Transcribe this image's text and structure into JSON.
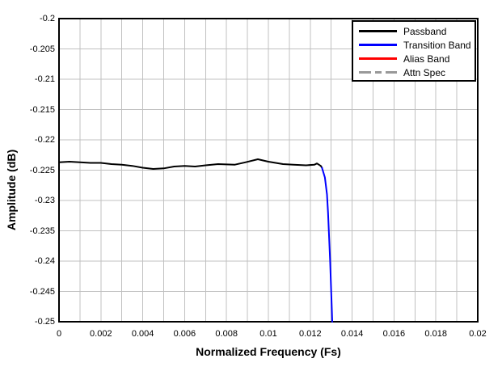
{
  "chart_data": {
    "type": "line",
    "title": "",
    "xlabel": "Normalized Frequency (Fs)",
    "ylabel": "Amplitude (dB)",
    "xlim": [
      0,
      0.02
    ],
    "ylim": [
      -0.25,
      -0.2
    ],
    "grid": true,
    "grid_color": "#c0c0c0",
    "x_minor_step": 0.001,
    "legend_position": "top-right",
    "x_ticks": [
      {
        "v": 0,
        "label": "0"
      },
      {
        "v": 0.002,
        "label": "0.002"
      },
      {
        "v": 0.004,
        "label": "0.004"
      },
      {
        "v": 0.006,
        "label": "0.006"
      },
      {
        "v": 0.008,
        "label": "0.008"
      },
      {
        "v": 0.01,
        "label": "0.01"
      },
      {
        "v": 0.012,
        "label": "0.012"
      },
      {
        "v": 0.014,
        "label": "0.014"
      },
      {
        "v": 0.016,
        "label": "0.016"
      },
      {
        "v": 0.018,
        "label": "0.018"
      },
      {
        "v": 0.02,
        "label": "0.02"
      }
    ],
    "y_ticks": [
      {
        "v": -0.2,
        "label": "-0.2"
      },
      {
        "v": -0.205,
        "label": "-0.205"
      },
      {
        "v": -0.21,
        "label": "-0.21"
      },
      {
        "v": -0.215,
        "label": "-0.215"
      },
      {
        "v": -0.22,
        "label": "-0.22"
      },
      {
        "v": -0.225,
        "label": "-0.225"
      },
      {
        "v": -0.23,
        "label": "-0.23"
      },
      {
        "v": -0.235,
        "label": "-0.235"
      },
      {
        "v": -0.24,
        "label": "-0.24"
      },
      {
        "v": -0.245,
        "label": "-0.245"
      },
      {
        "v": -0.25,
        "label": "-0.25"
      }
    ],
    "series": [
      {
        "name": "Passband",
        "color": "#000000",
        "dash": "solid",
        "points": [
          [
            0.0,
            -0.2237
          ],
          [
            0.0005,
            -0.2236
          ],
          [
            0.001,
            -0.2237
          ],
          [
            0.0015,
            -0.2238
          ],
          [
            0.002,
            -0.2238
          ],
          [
            0.0025,
            -0.224
          ],
          [
            0.003,
            -0.2241
          ],
          [
            0.0035,
            -0.2243
          ],
          [
            0.004,
            -0.2246
          ],
          [
            0.0045,
            -0.2248
          ],
          [
            0.005,
            -0.2247
          ],
          [
            0.0055,
            -0.2244
          ],
          [
            0.006,
            -0.2243
          ],
          [
            0.0065,
            -0.2244
          ],
          [
            0.007,
            -0.2242
          ],
          [
            0.0076,
            -0.224
          ],
          [
            0.0084,
            -0.2241
          ],
          [
            0.0089,
            -0.2237
          ],
          [
            0.0095,
            -0.2232
          ],
          [
            0.01,
            -0.2236
          ],
          [
            0.0107,
            -0.224
          ],
          [
            0.0112,
            -0.2241
          ],
          [
            0.0118,
            -0.2242
          ],
          [
            0.0122,
            -0.2241
          ],
          [
            0.01232,
            -0.2239
          ],
          [
            0.0125,
            -0.2243
          ],
          [
            0.01256,
            -0.2246
          ]
        ]
      },
      {
        "name": "Transition Band",
        "color": "#0000ff",
        "dash": "solid",
        "points": [
          [
            0.01256,
            -0.2246
          ],
          [
            0.0127,
            -0.2262
          ],
          [
            0.0128,
            -0.229
          ],
          [
            0.01285,
            -0.232
          ],
          [
            0.0129,
            -0.236
          ],
          [
            0.01295,
            -0.24
          ],
          [
            0.013,
            -0.245
          ],
          [
            0.01303,
            -0.248
          ],
          [
            0.01305,
            -0.25
          ]
        ]
      },
      {
        "name": "Alias Band",
        "color": "#ff0000",
        "dash": "solid",
        "points": []
      },
      {
        "name": "Attn Spec",
        "color": "#999999",
        "dash": "dash-dot",
        "points": []
      }
    ]
  }
}
